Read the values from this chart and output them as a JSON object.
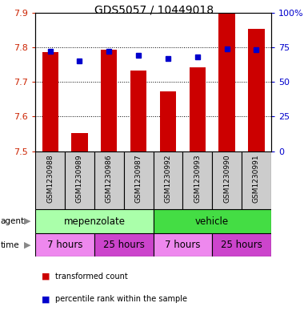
{
  "title": "GDS5057 / 10449018",
  "samples": [
    "GSM1230988",
    "GSM1230989",
    "GSM1230986",
    "GSM1230987",
    "GSM1230992",
    "GSM1230993",
    "GSM1230990",
    "GSM1230991"
  ],
  "bar_values": [
    7.785,
    7.553,
    7.793,
    7.733,
    7.672,
    7.743,
    7.9,
    7.853
  ],
  "bar_bottom": 7.5,
  "percentile_values": [
    72,
    65,
    72,
    69,
    67,
    68,
    74,
    73
  ],
  "ylim": [
    7.5,
    7.9
  ],
  "y2lim": [
    0,
    100
  ],
  "yticks": [
    7.5,
    7.6,
    7.7,
    7.8,
    7.9
  ],
  "y2ticks": [
    0,
    25,
    50,
    75,
    100
  ],
  "bar_color": "#cc0000",
  "dot_color": "#0000cc",
  "bar_width": 0.55,
  "agent_colors": [
    "#aaffaa",
    "#44cc44"
  ],
  "agent_texts": [
    "mepenzolate",
    "vehicle"
  ],
  "time_colors": [
    "#ee88ee",
    "#ee88ee",
    "#ee88ee",
    "#ee88ee"
  ],
  "time_texts": [
    "7 hours",
    "25 hours",
    "7 hours",
    "25 hours"
  ],
  "time_colors_actual": [
    "#dd88dd",
    "#cc44cc",
    "#dd88dd",
    "#cc44cc"
  ],
  "xtick_bg": "#cccccc",
  "bg_color": "#ffffff",
  "left_label_color": "#cc2200",
  "right_label_color": "#0000cc",
  "title_fontsize": 10
}
